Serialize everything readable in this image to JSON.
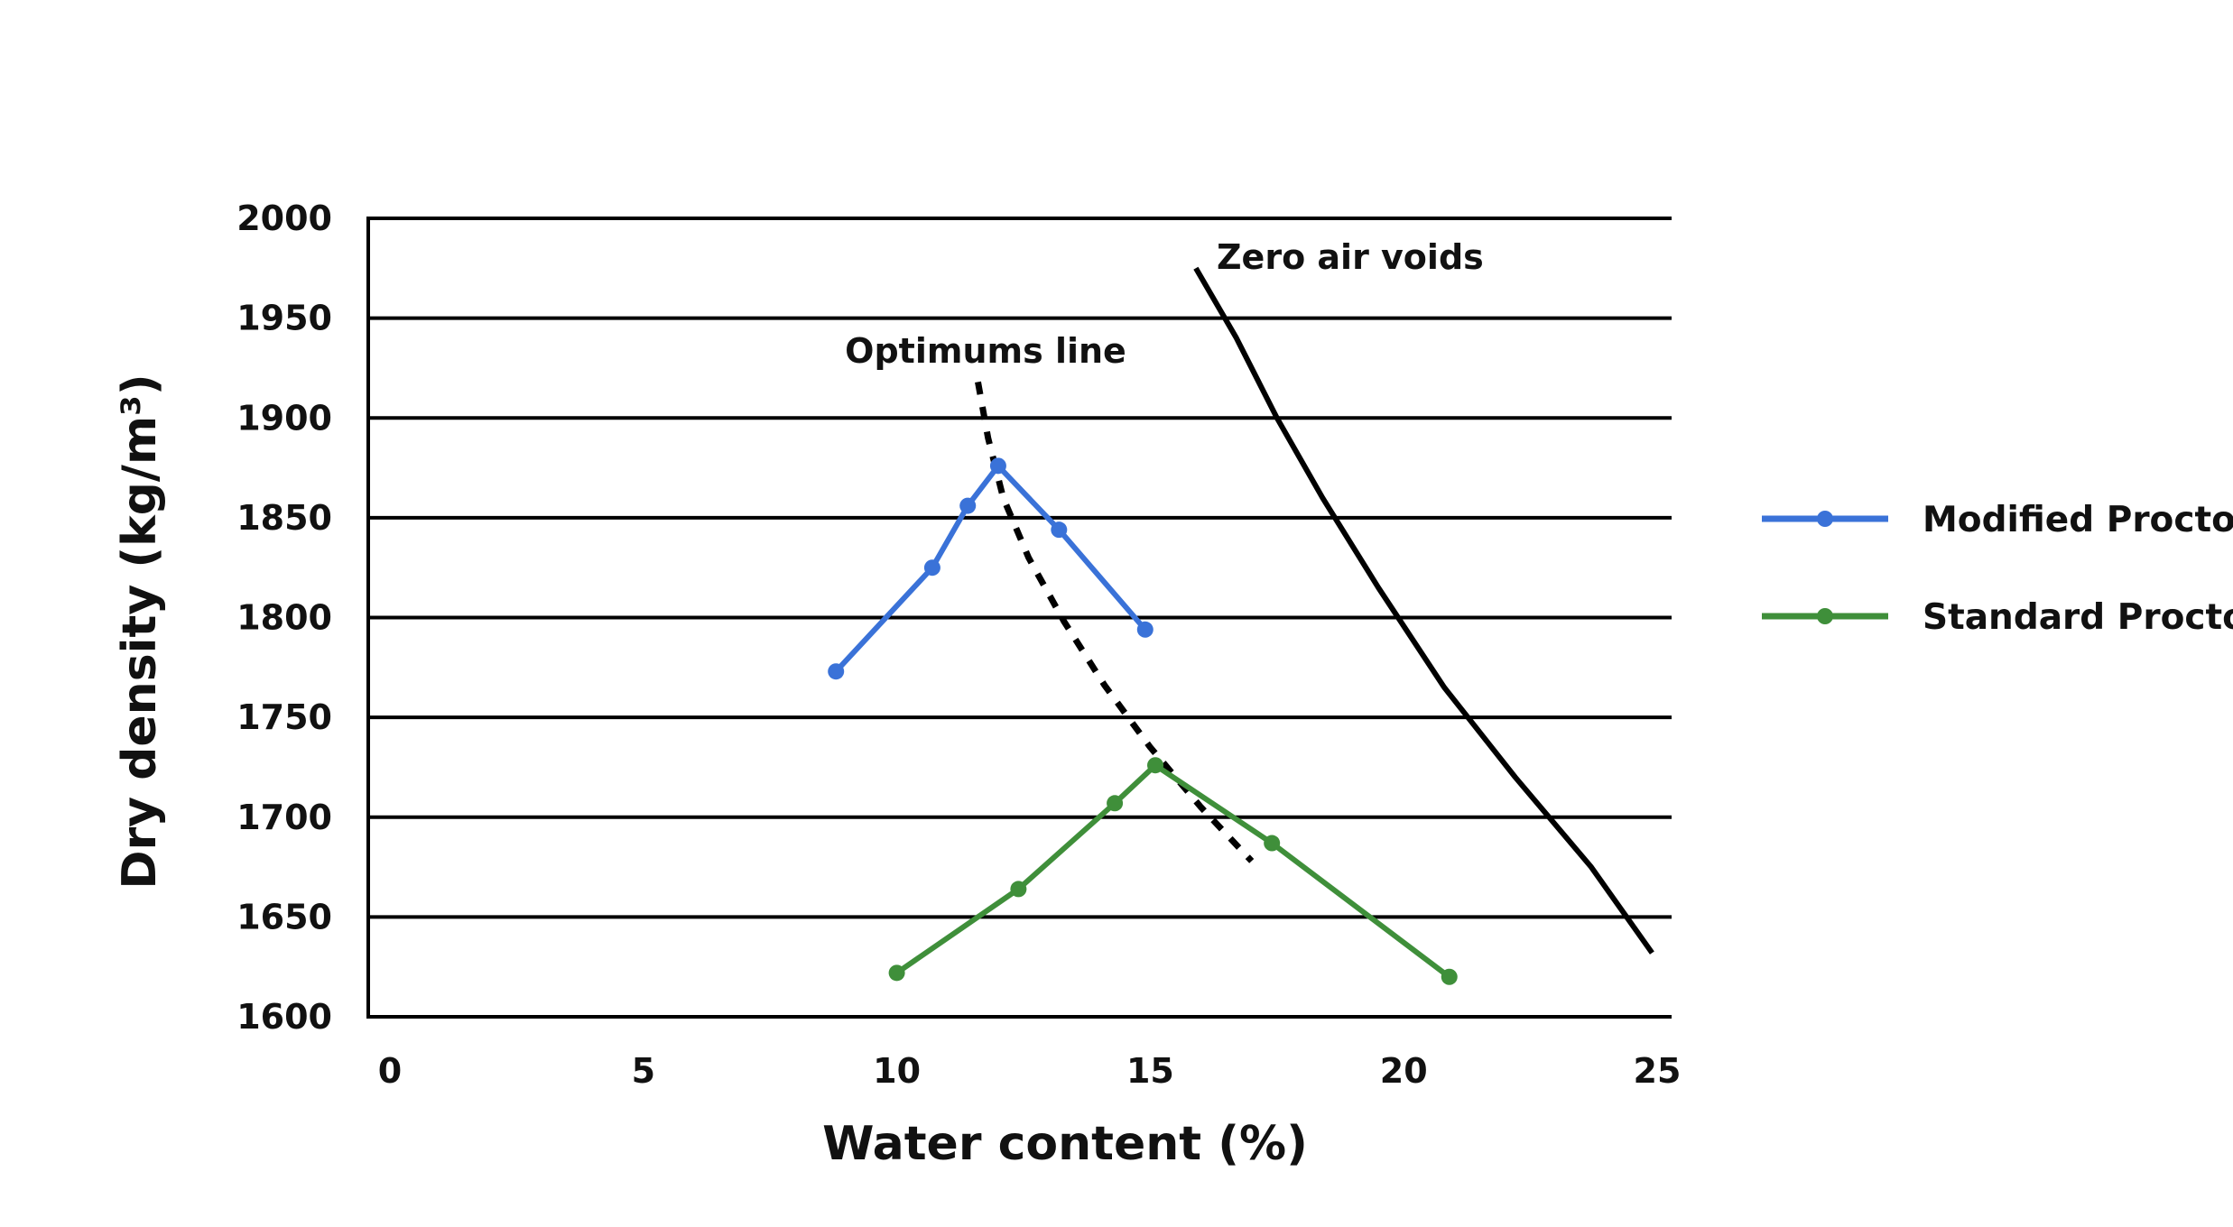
{
  "chart_data": {
    "type": "line",
    "title": "",
    "xlabel": "Water content (%)",
    "ylabel": "Dry density (kg/m³)",
    "xlim": [
      0,
      25
    ],
    "ylim": [
      1600,
      2000
    ],
    "x_ticks": [
      "0",
      "5",
      "10",
      "15",
      "20",
      "25"
    ],
    "y_ticks": [
      "1600",
      "1650",
      "1700",
      "1750",
      "1800",
      "1850",
      "1900",
      "1950",
      "2000"
    ],
    "grid": "horizontal",
    "legend_position": "right",
    "series": [
      {
        "name": "Modified Proctor",
        "color": "#3a72d8",
        "x": [
          8.8,
          10.7,
          11.4,
          12.0,
          13.2,
          14.9
        ],
        "y": [
          1773,
          1825,
          1856,
          1876,
          1844,
          1794
        ]
      },
      {
        "name": "Standard Proctor",
        "color": "#3f8f3a",
        "x": [
          10.0,
          12.4,
          14.3,
          15.1,
          17.4,
          20.9
        ],
        "y": [
          1622,
          1664,
          1707,
          1726,
          1687,
          1620
        ]
      }
    ],
    "reference_lines": [
      {
        "label": "Zero air voids",
        "style": "solid",
        "color": "#000000",
        "x": [
          15.9,
          16.7,
          17.5,
          18.4,
          19.5,
          20.8,
          22.2,
          23.7,
          24.9
        ],
        "y": [
          1975,
          1940,
          1900,
          1860,
          1815,
          1765,
          1720,
          1675,
          1632
        ]
      },
      {
        "label": "Optimums line",
        "style": "dotted",
        "color": "#000000",
        "x": [
          11.6,
          11.8,
          12.1,
          12.6,
          13.3,
          14.1,
          15.0,
          16.0,
          17.0
        ],
        "y": [
          1918,
          1890,
          1860,
          1830,
          1798,
          1766,
          1735,
          1705,
          1678
        ]
      }
    ]
  }
}
